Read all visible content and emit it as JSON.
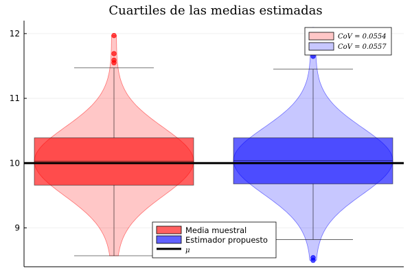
{
  "chart_data": {
    "type": "violin",
    "title": "Cuartiles de las medias estimadas",
    "xlabel": "",
    "ylabel": "",
    "ylim": [
      8.4,
      12.2
    ],
    "yticks": [
      9,
      10,
      11,
      12
    ],
    "grid": true,
    "hline": {
      "name": "μ",
      "value": 10.0,
      "color": "#000000"
    },
    "series": [
      {
        "name": "Media muestral",
        "color": "#ff0000",
        "box": {
          "q1": 9.66,
          "median": 10.03,
          "q3": 10.39,
          "whisker_low": 8.57,
          "whisker_high": 11.47
        },
        "outliers": [
          11.97,
          11.69,
          11.59,
          11.55
        ],
        "violin_min": 8.57,
        "violin_max": 11.97
      },
      {
        "name": "Estimador propuesto",
        "color": "#0000ff",
        "box": {
          "q1": 9.68,
          "median": 10.04,
          "q3": 10.39,
          "whisker_low": 8.82,
          "whisker_high": 11.45
        },
        "outliers": [
          12.06,
          11.65,
          8.54,
          8.5
        ],
        "violin_min": 8.5,
        "violin_max": 12.07
      }
    ],
    "legends": [
      {
        "position": "top-right",
        "entries": [
          {
            "label": "CoV = 0.0554",
            "color": "#ff0000"
          },
          {
            "label": "CoV = 0.0557",
            "color": "#0000ff"
          }
        ]
      },
      {
        "position": "bottom",
        "entries": [
          {
            "label": "Media muestral",
            "color": "#ff0000",
            "kind": "box"
          },
          {
            "label": "Estimador propuesto",
            "color": "#0000ff",
            "kind": "box"
          },
          {
            "label": "μ",
            "color": "#000000",
            "kind": "line"
          }
        ]
      }
    ]
  }
}
